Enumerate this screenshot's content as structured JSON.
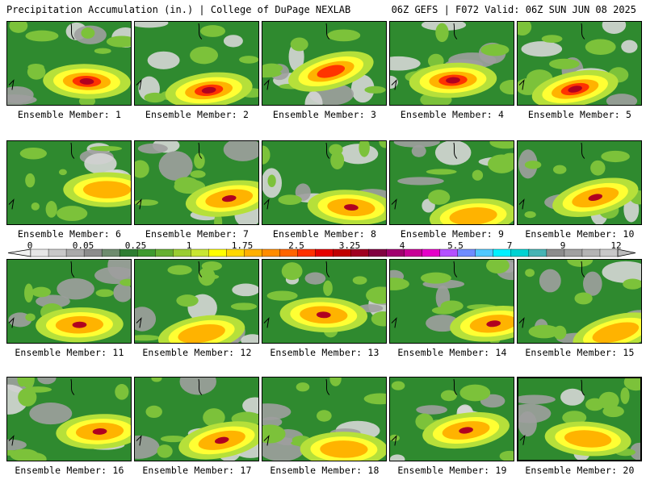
{
  "header": {
    "title": "Precipitation Accumulation (in.) | College of DuPage NEXLAB",
    "run_info": "06Z GEFS | F072 Valid: 06Z SUN JUN 08 2025"
  },
  "colorbar": {
    "tick_labels": [
      "0",
      "0.05",
      "0.25",
      "1",
      "1.75",
      "2.5",
      "3.25",
      "4",
      "5.5",
      "7",
      "9",
      "12"
    ],
    "colors": [
      "#e6e6e6",
      "#c8c8c8",
      "#aaaaaa",
      "#8c8c8c",
      "#6e8c6e",
      "#2e7d32",
      "#3f9a2f",
      "#66b032",
      "#9acd32",
      "#c8e632",
      "#ffff00",
      "#ffd700",
      "#ffb000",
      "#ff8c00",
      "#ff6400",
      "#ff3000",
      "#e60000",
      "#c00000",
      "#a00020",
      "#800040",
      "#a0006e",
      "#c80096",
      "#e600c8",
      "#b450ff",
      "#6e8cff",
      "#50c8ff",
      "#00f0ff",
      "#00d2d2",
      "#46b4b4",
      "#8c8c8c",
      "#a0a0a0",
      "#b4b4b4",
      "#c8c8c8"
    ]
  },
  "members": [
    {
      "label": "Ensemble Member: 1"
    },
    {
      "label": "Ensemble Member: 2"
    },
    {
      "label": "Ensemble Member: 3"
    },
    {
      "label": "Ensemble Member: 4"
    },
    {
      "label": "Ensemble Member: 5"
    },
    {
      "label": "Ensemble Member: 6"
    },
    {
      "label": "Ensemble Member: 7"
    },
    {
      "label": "Ensemble Member: 8"
    },
    {
      "label": "Ensemble Member: 9"
    },
    {
      "label": "Ensemble Member: 10"
    },
    {
      "label": "Ensemble Member: 11"
    },
    {
      "label": "Ensemble Member: 12"
    },
    {
      "label": "Ensemble Member: 13"
    },
    {
      "label": "Ensemble Member: 14"
    },
    {
      "label": "Ensemble Member: 15"
    },
    {
      "label": "Ensemble Member: 16"
    },
    {
      "label": "Ensemble Member: 17"
    },
    {
      "label": "Ensemble Member: 18"
    },
    {
      "label": "Ensemble Member: 19"
    },
    {
      "label": "Ensemble Member: 20"
    }
  ],
  "selected_member": "Ensemble Member: 20"
}
